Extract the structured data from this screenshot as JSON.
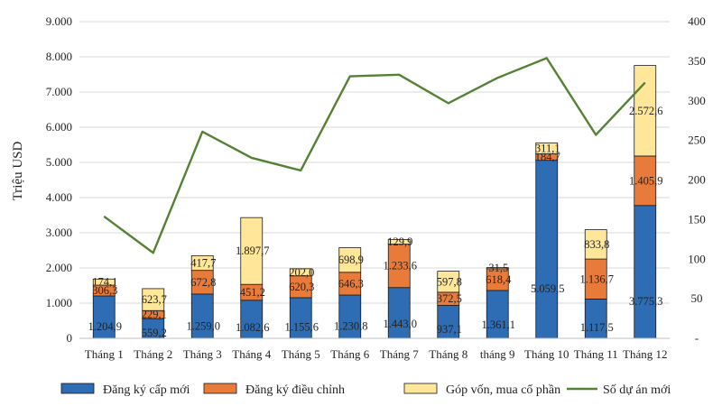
{
  "chart_data": {
    "type": "bar",
    "stacked": true,
    "categories": [
      "Tháng 1",
      "Tháng 2",
      "Tháng 3",
      "Tháng 4",
      "Tháng 5",
      "Tháng 6",
      "Tháng 7",
      "Tháng 8",
      "tháng 9",
      "Tháng 10",
      "Tháng 11",
      "Tháng 12"
    ],
    "ylabel": "Triệu USD",
    "ylim": [
      0,
      9000
    ],
    "yticks": [
      "0",
      "1.000",
      "2.000",
      "3.000",
      "4.000",
      "5.000",
      "6.000",
      "7.000",
      "8.000",
      "9.000"
    ],
    "y2lim": [
      0,
      400
    ],
    "y2ticks": [
      "-",
      "50",
      "100",
      "150",
      "200",
      "250",
      "300",
      "350",
      "400"
    ],
    "grid": true,
    "legend_position": "bottom",
    "series": [
      {
        "name": "Đăng ký cấp mới",
        "color": "#2E6DB4",
        "values": [
          1204.9,
          559.2,
          1259.0,
          1082.6,
          1155.6,
          1230.8,
          1443.0,
          937.1,
          1361.1,
          5059.5,
          1117.5,
          3775.3
        ],
        "labels": [
          "1.204,9",
          "559,2",
          "1.259,0",
          "1.082,6",
          "1.155,6",
          "1.230,8",
          "1.443,0",
          "937,1",
          "1.361,1",
          "5.059,5",
          "1.117,5",
          "3.775,3"
        ]
      },
      {
        "name": "Đăng ký điều chỉnh",
        "color": "#E97B3A",
        "values": [
          306.3,
          229.1,
          672.8,
          451.2,
          620.3,
          646.3,
          1233.6,
          372.5,
          618.4,
          184.7,
          1136.7,
          1405.9
        ],
        "labels": [
          "306,3",
          "229,1",
          "672,8",
          "451,2",
          "620,3",
          "646,3",
          "1.233,6",
          "372,5",
          "618,4",
          "184,7",
          "1.136,7",
          "1.405,9"
        ]
      },
      {
        "name": "Góp vốn, mua cổ phần",
        "color": "#FFE699",
        "values": [
          174.1,
          623.7,
          417.7,
          1897.7,
          202.0,
          698.9,
          129.9,
          597.8,
          31.5,
          311.1,
          833.8,
          2572.6
        ],
        "labels": [
          "174,1",
          "623,7",
          "417,7",
          "1.897,7",
          "202,0",
          "698,9",
          "129,9",
          "597,8",
          "31,5",
          "311,1",
          "833,8",
          "2.572,6"
        ]
      }
    ],
    "line_series": {
      "name": "Số dự án mới",
      "color": "#548235",
      "axis": "right",
      "values": [
        154,
        108,
        261,
        228,
        212,
        331,
        333,
        297,
        329,
        354,
        257,
        323
      ]
    }
  }
}
